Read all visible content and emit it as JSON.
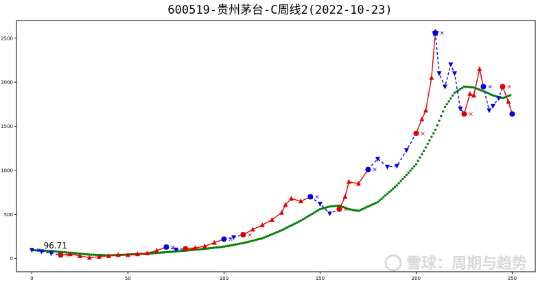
{
  "chart_data": {
    "type": "line",
    "title": "600519-贵州茅台-C周线2(2022-10-23)",
    "xlim": [
      -8,
      262
    ],
    "ylim": [
      -150,
      2700
    ],
    "xticks": [
      0,
      50,
      100,
      150,
      200,
      250
    ],
    "yticks": [
      0,
      500,
      1000,
      1500,
      2000,
      2500
    ],
    "grid": false,
    "annotation": {
      "text": "96.71",
      "x": 4,
      "y": 96.71
    },
    "watermark": "雪球：周期与趋势",
    "price": {
      "x": [
        0,
        5,
        10,
        15,
        20,
        25,
        30,
        35,
        40,
        45,
        50,
        55,
        60,
        65,
        70,
        75,
        80,
        85,
        90,
        95,
        100,
        105,
        110,
        115,
        120,
        125,
        130,
        132,
        135,
        140,
        145,
        150,
        155,
        160,
        163,
        165,
        170,
        175,
        180,
        185,
        190,
        195,
        200,
        203,
        205,
        208,
        210,
        212,
        215,
        218,
        220,
        223,
        225,
        228,
        230,
        233,
        235,
        238,
        240,
        243,
        245,
        248,
        250
      ],
      "y": [
        96.71,
        80,
        60,
        40,
        50,
        30,
        10,
        20,
        30,
        40,
        40,
        50,
        60,
        90,
        130,
        100,
        110,
        120,
        140,
        180,
        220,
        240,
        270,
        330,
        380,
        440,
        520,
        610,
        680,
        650,
        700,
        620,
        510,
        560,
        700,
        870,
        850,
        1010,
        1130,
        1040,
        1050,
        1230,
        1420,
        1580,
        1680,
        2050,
        2560,
        2100,
        1950,
        2200,
        2100,
        1700,
        1640,
        1870,
        1850,
        2150,
        1950,
        1680,
        1730,
        1820,
        1950,
        1780,
        1640
      ]
    },
    "ma": {
      "name": "",
      "x": [
        0,
        10,
        20,
        30,
        40,
        50,
        60,
        70,
        80,
        90,
        100,
        110,
        120,
        130,
        140,
        150,
        155,
        160,
        165,
        170,
        180,
        190,
        200,
        205,
        210,
        215,
        220,
        225,
        230,
        235,
        240,
        245,
        250
      ],
      "y": [
        95,
        85,
        65,
        45,
        35,
        45,
        55,
        72,
        90,
        110,
        135,
        175,
        230,
        320,
        430,
        560,
        590,
        600,
        560,
        540,
        640,
        830,
        1070,
        1260,
        1460,
        1720,
        1880,
        1950,
        1940,
        1900,
        1850,
        1820,
        1860
      ]
    },
    "segments": [
      {
        "from": 0,
        "to": 3,
        "dir": "down"
      },
      {
        "from": 3,
        "to": 14,
        "dir": "up"
      },
      {
        "from": 14,
        "to": 16,
        "dir": "down"
      },
      {
        "from": 16,
        "to": 20,
        "dir": "up"
      },
      {
        "from": 20,
        "to": 22,
        "dir": "down"
      },
      {
        "from": 22,
        "to": 30,
        "dir": "up"
      },
      {
        "from": 30,
        "to": 33,
        "dir": "down"
      },
      {
        "from": 33,
        "to": 37,
        "dir": "up"
      },
      {
        "from": 37,
        "to": 42,
        "dir": "down"
      },
      {
        "from": 42,
        "to": 46,
        "dir": "up"
      },
      {
        "from": 46,
        "to": 52,
        "dir": "down"
      },
      {
        "from": 52,
        "to": 56,
        "dir": "up"
      },
      {
        "from": 56,
        "to": 60,
        "dir": "down"
      },
      {
        "from": 60,
        "to": 62,
        "dir": "up"
      }
    ],
    "colors": {
      "up": "#e00000",
      "down": "#0000ee",
      "ma": "#008000"
    }
  }
}
